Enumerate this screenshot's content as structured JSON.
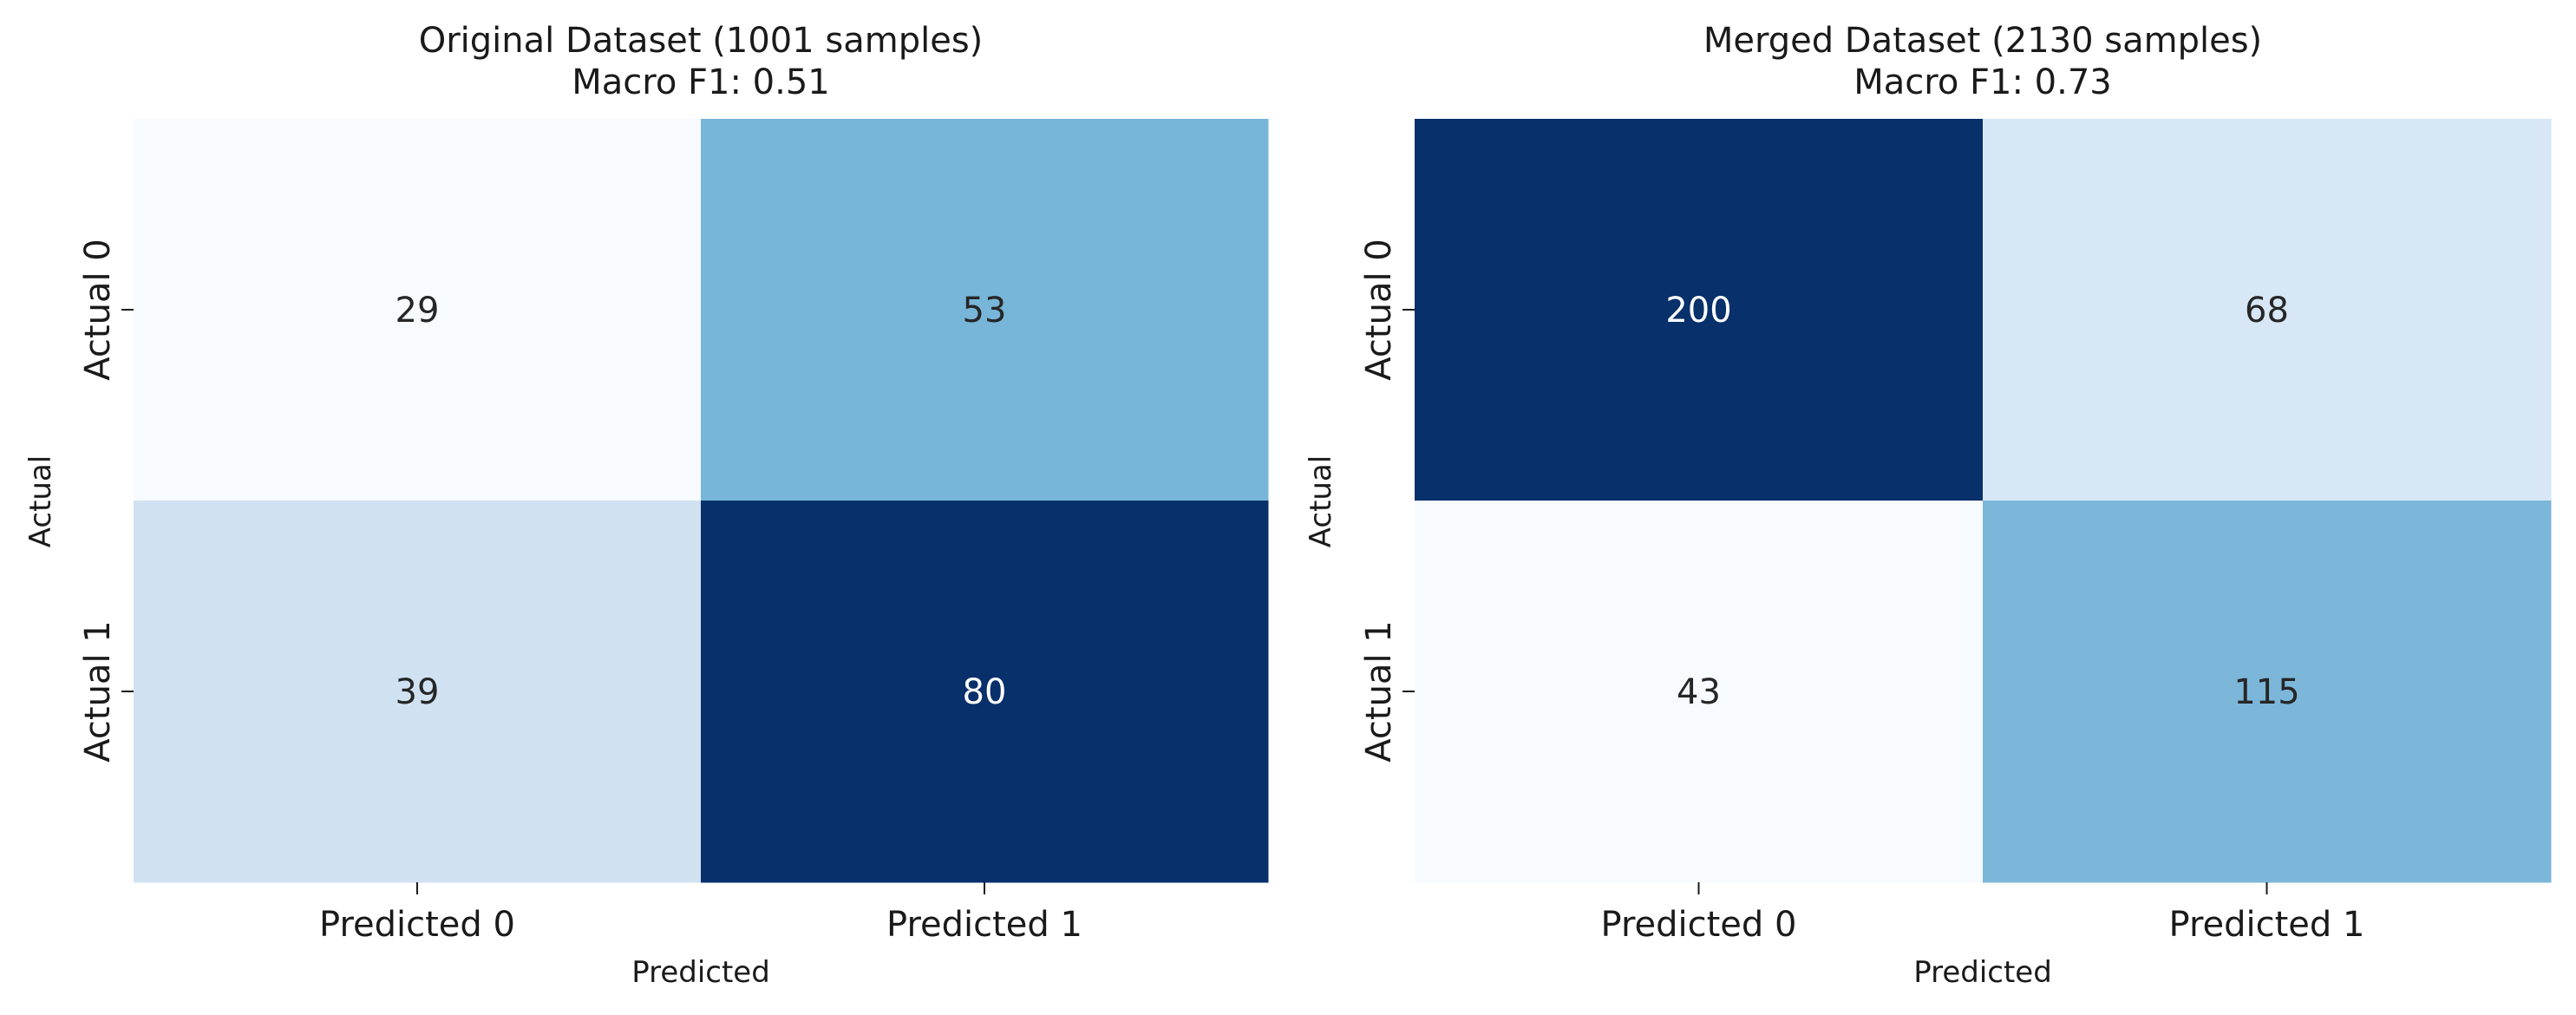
{
  "chart_data": [
    {
      "type": "heatmap",
      "title": "Original Dataset (1001 samples)",
      "subtitle": "Macro F1: 0.51",
      "xlabel": "Predicted",
      "ylabel": "Actual",
      "x_categories": [
        "Predicted 0",
        "Predicted 1"
      ],
      "y_categories": [
        "Actual 0",
        "Actual 1"
      ],
      "values": [
        [
          29,
          53
        ],
        [
          39,
          80
        ]
      ],
      "colormap": "Blues",
      "colorbar": false
    },
    {
      "type": "heatmap",
      "title": "Merged Dataset (2130 samples)",
      "subtitle": "Macro F1: 0.73",
      "xlabel": "Predicted",
      "ylabel": "Actual",
      "x_categories": [
        "Predicted 0",
        "Predicted 1"
      ],
      "y_categories": [
        "Actual 0",
        "Actual 1"
      ],
      "values": [
        [
          200,
          68
        ],
        [
          43,
          115
        ]
      ],
      "colormap": "Blues",
      "colorbar": false
    }
  ]
}
